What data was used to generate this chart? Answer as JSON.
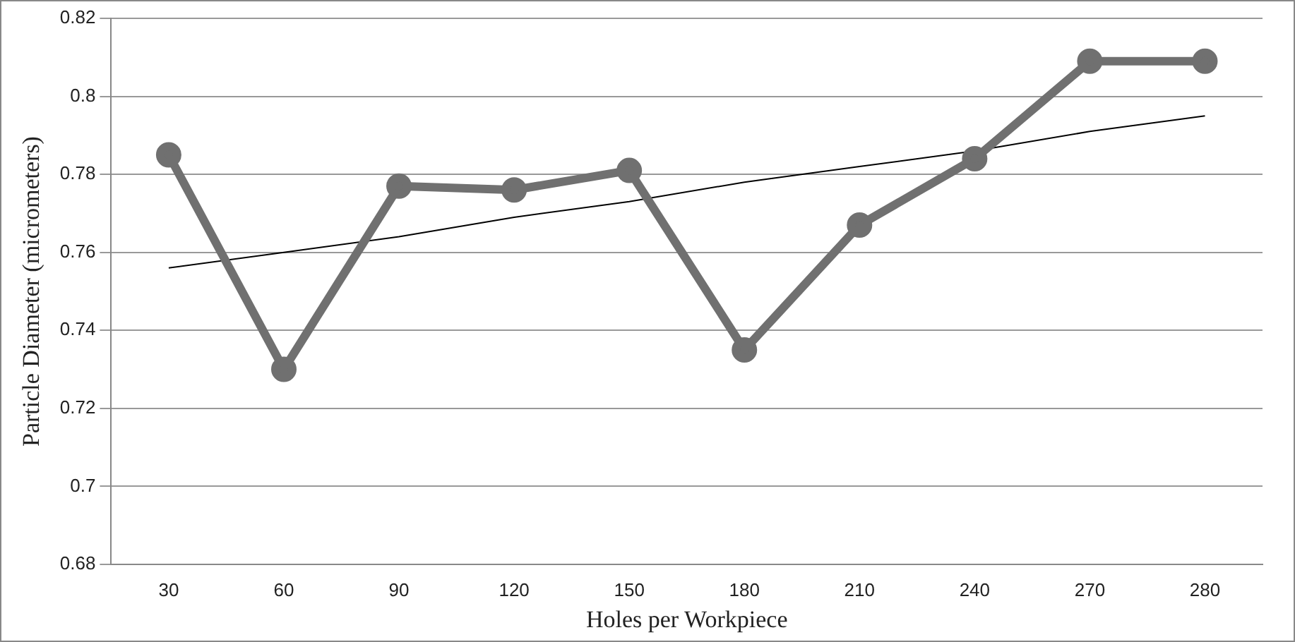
{
  "chart_data": {
    "type": "line",
    "xlabel": "Holes per Workpiece",
    "ylabel": "Particle Diameter (micrometers)",
    "categories": [
      "30",
      "60",
      "90",
      "120",
      "150",
      "180",
      "210",
      "240",
      "270",
      "280"
    ],
    "series": [
      {
        "color": "#707070",
        "values": [
          0.785,
          0.73,
          0.777,
          0.776,
          0.781,
          0.735,
          0.767,
          0.784,
          0.809,
          0.809
        ]
      },
      {
        "type": "line",
        "color": "#000000",
        "marker": "none",
        "values": [
          0.756,
          0.76,
          0.764,
          0.769,
          0.773,
          0.778,
          0.782,
          0.786,
          0.791,
          0.795
        ]
      }
    ],
    "ylim": [
      0.68,
      0.82
    ],
    "yticks": [
      0.68,
      0.7,
      0.72,
      0.74,
      0.76,
      0.78,
      0.8,
      0.82
    ],
    "grid": "y",
    "legend": false,
    "marker": "circle"
  }
}
